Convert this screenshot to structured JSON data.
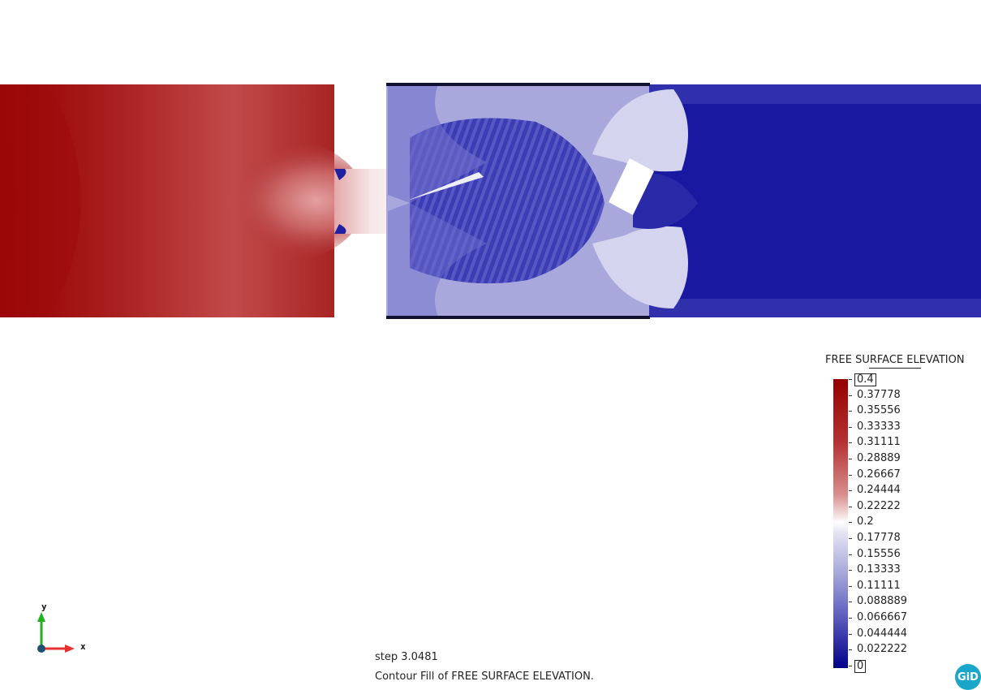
{
  "legend": {
    "title": "FREE SURFACE ELEVATION",
    "labels": [
      "0.4",
      "0.37778",
      "0.35556",
      "0.33333",
      "0.31111",
      "0.28889",
      "0.26667",
      "0.24444",
      "0.22222",
      "0.2",
      "0.17778",
      "0.15556",
      "0.13333",
      "0.11111",
      "0.088889",
      "0.066667",
      "0.044444",
      "0.022222",
      "0"
    ],
    "max": "0.4",
    "min": "0"
  },
  "status": {
    "step": "step 3.0481",
    "description": "Contour Fill of FREE SURFACE ELEVATION."
  },
  "axes": {
    "x": "x",
    "y": "y",
    "x_color": "#e53030",
    "y_color": "#22b022"
  },
  "logo": {
    "text": "GiD",
    "color": "#1aa6c9"
  },
  "colors": {
    "high": "#960000",
    "mid": "#ffffff",
    "low": "#00008a"
  }
}
